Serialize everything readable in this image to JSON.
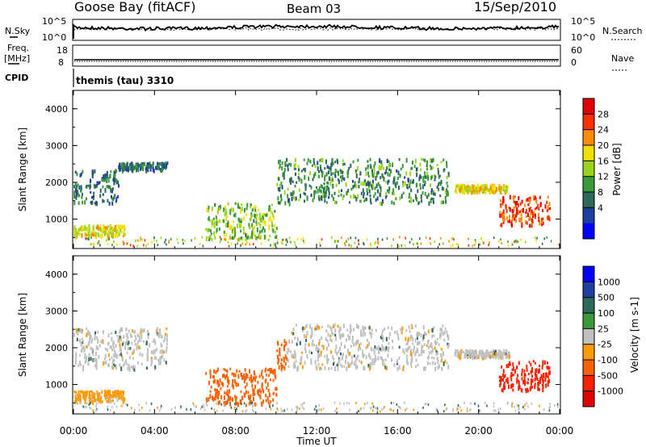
{
  "header": {
    "station": "Goose Bay (fitACF)",
    "beam": "Beam 03",
    "date": "15/Sep/2010"
  },
  "left_labels": {
    "nsky": "N.Sky",
    "freq_line1": "Freq.",
    "freq_line2": "[MHz]",
    "cpid": "CPID"
  },
  "right_labels": {
    "nsearch": "N.Search",
    "nave": "Nave"
  },
  "noise_panel": {
    "left_ticks": [
      "10^5",
      "10^0"
    ],
    "right_ticks": [
      "10^5",
      "10^0"
    ]
  },
  "freq_panel": {
    "left_ticks": [
      "18",
      "8"
    ],
    "right_ticks": [
      "60",
      "0"
    ]
  },
  "cpid_text": "themis (tau) 3310",
  "colors": {
    "power": [
      "#0000ff",
      "#1e3f9e",
      "#2e6a5c",
      "#3a9a3a",
      "#9ad41f",
      "#f0e000",
      "#ff8c00",
      "#ff3000",
      "#e00000"
    ],
    "velocity": [
      "#0000ff",
      "#1e3f9e",
      "#2e6a5c",
      "#3a9a3a",
      "#c0c0c0",
      "#ff9a00",
      "#ff6000",
      "#ff2000",
      "#e00000"
    ]
  },
  "chart_data": [
    {
      "type": "heatmap",
      "panel": "power",
      "ylabel": "Slant Range [km]",
      "yticks": [
        "1000",
        "2000",
        "3000",
        "4000"
      ],
      "ylim": [
        200,
        4500
      ],
      "xlim_hours": [
        0,
        24
      ],
      "colorbar_label": "Power [dB]",
      "colorbar_ticks": [
        "4",
        "8",
        "12",
        "16",
        "20",
        "24",
        "28"
      ],
      "colorbar_range": [
        0,
        30
      ],
      "echo_regions": [
        {
          "t_start": 0.0,
          "t_end": 2.2,
          "range_start": 1400,
          "range_end": 2300,
          "power": 8
        },
        {
          "t_start": 2.2,
          "t_end": 4.6,
          "range_start": 2300,
          "range_end": 2500,
          "power": 7
        },
        {
          "t_start": 0.0,
          "t_end": 2.5,
          "range_start": 500,
          "range_end": 800,
          "power": 18
        },
        {
          "t_start": 6.5,
          "t_end": 10.0,
          "range_start": 400,
          "range_end": 1400,
          "power": 14
        },
        {
          "t_start": 10.0,
          "t_end": 18.5,
          "range_start": 1400,
          "range_end": 2600,
          "power": 10
        },
        {
          "t_start": 18.8,
          "t_end": 21.5,
          "range_start": 1700,
          "range_end": 1900,
          "power": 18
        },
        {
          "t_start": 21.0,
          "t_end": 23.5,
          "range_start": 800,
          "range_end": 1600,
          "power": 26
        }
      ]
    },
    {
      "type": "heatmap",
      "panel": "velocity",
      "ylabel": "Slant Range [km]",
      "yticks": [
        "1000",
        "2000",
        "3000",
        "4000"
      ],
      "ylim": [
        200,
        4500
      ],
      "xlim_hours": [
        0,
        24
      ],
      "xticks": [
        "00:00",
        "04:00",
        "08:00",
        "12:00",
        "16:00",
        "20:00",
        "00:00"
      ],
      "xlabel": "Time UT",
      "colorbar_label": "Velocity [m s-1]",
      "colorbar_ticks": [
        "1000",
        "500",
        "100",
        "25",
        "-25",
        "-100",
        "-500",
        "-1000"
      ],
      "echo_regions": [
        {
          "t_start": 0.0,
          "t_end": 4.6,
          "range_start": 1400,
          "range_end": 2500,
          "velocity": 0
        },
        {
          "t_start": 0.0,
          "t_end": 2.5,
          "range_start": 500,
          "range_end": 800,
          "velocity": -50
        },
        {
          "t_start": 6.5,
          "t_end": 10.0,
          "range_start": 400,
          "range_end": 1400,
          "velocity": -150
        },
        {
          "t_start": 10.0,
          "t_end": 10.5,
          "range_start": 1400,
          "range_end": 2200,
          "velocity": -400
        },
        {
          "t_start": 10.5,
          "t_end": 18.5,
          "range_start": 1400,
          "range_end": 2600,
          "velocity": 0
        },
        {
          "t_start": 18.8,
          "t_end": 21.5,
          "range_start": 1700,
          "range_end": 1900,
          "velocity": 0
        },
        {
          "t_start": 21.0,
          "t_end": 23.5,
          "range_start": 800,
          "range_end": 1600,
          "velocity": -600
        }
      ]
    }
  ]
}
